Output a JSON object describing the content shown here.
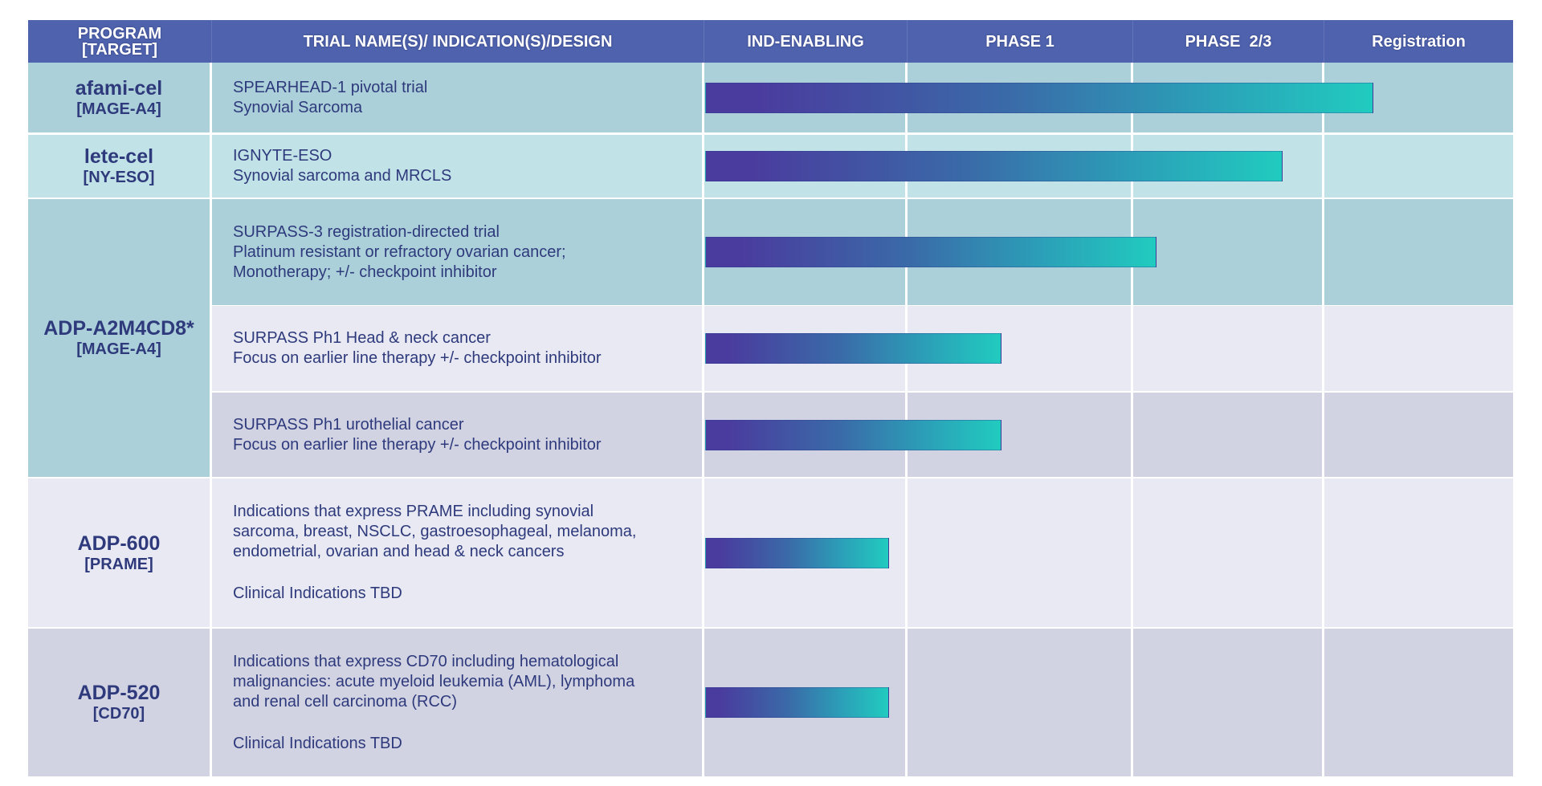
{
  "colors": {
    "header_bg": "#4f62ad",
    "header_text": "#ffffff",
    "body_text": "#2e3a7c",
    "row_teal_dark": "#abd0d9",
    "row_teal_light": "#c1e2e7",
    "row_lavender_light": "#e8e9f2",
    "row_lavender_dark": "#d1d3e3",
    "grid_line": "#ffffff",
    "bar_start": "#4a3c9e",
    "bar_end": "#21cbbf"
  },
  "header": {
    "program": "PROGRAM [TARGET]",
    "program_line1": "PROGRAM",
    "program_line2": "[TARGET]",
    "trial": "TRIAL NAME(S)/ INDICATION(S)/DESIGN",
    "phases": [
      "IND-ENABLING",
      "PHASE 1",
      "PHASE  2/3",
      "Registration"
    ]
  },
  "chart_data": {
    "type": "table",
    "title": "",
    "stages": [
      "IND-ENABLING",
      "PHASE 1",
      "PHASE  2/3",
      "Registration"
    ],
    "progress_units": "stage index (0 = start of IND-ENABLING, 4 = end of Registration)",
    "programs": [
      {
        "name": "afami-cel",
        "target": "[MAGE-A4]",
        "trials": [
          {
            "lines": [
              "SPEARHEAD-1 pivotal trial",
              "Synovial Sarcoma"
            ],
            "progress": 3.25
          }
        ]
      },
      {
        "name": "lete-cel",
        "target": "[NY-ESO]",
        "trials": [
          {
            "lines": [
              "IGNYTE-ESO",
              "Synovial sarcoma and MRCLS"
            ],
            "progress": 2.78
          }
        ]
      },
      {
        "name": "ADP-A2M4CD8*",
        "target": "[MAGE-A4]",
        "trials": [
          {
            "lines": [
              "SURPASS-3 registration-directed trial",
              "Platinum resistant or refractory ovarian cancer;",
              "Monotherapy; +/- checkpoint inhibitor"
            ],
            "progress": 2.11
          },
          {
            "lines": [
              "SURPASS Ph1 Head & neck cancer",
              "Focus on earlier line therapy +/- checkpoint inhibitor"
            ],
            "progress": 1.41
          },
          {
            "lines": [
              "SURPASS Ph1 urothelial cancer",
              "Focus on earlier line therapy +/- checkpoint inhibitor"
            ],
            "progress": 1.41
          }
        ]
      },
      {
        "name": "ADP-600",
        "target": "[PRAME]",
        "trials": [
          {
            "lines": [
              "Indications that express PRAME including synovial",
              "sarcoma, breast, NSCLC, gastroesophageal, melanoma,",
              "endometrial, ovarian and head & neck cancers",
              "",
              "Clinical Indications TBD"
            ],
            "progress": 0.91
          }
        ]
      },
      {
        "name": "ADP-520",
        "target": "[CD70]",
        "trials": [
          {
            "lines": [
              "Indications that express CD70 including hematological",
              "malignancies: acute myeloid leukemia (AML), lymphoma",
              "and renal cell carcinoma (RCC)",
              "",
              "Clinical Indications TBD"
            ],
            "progress": 0.91
          }
        ]
      }
    ]
  }
}
